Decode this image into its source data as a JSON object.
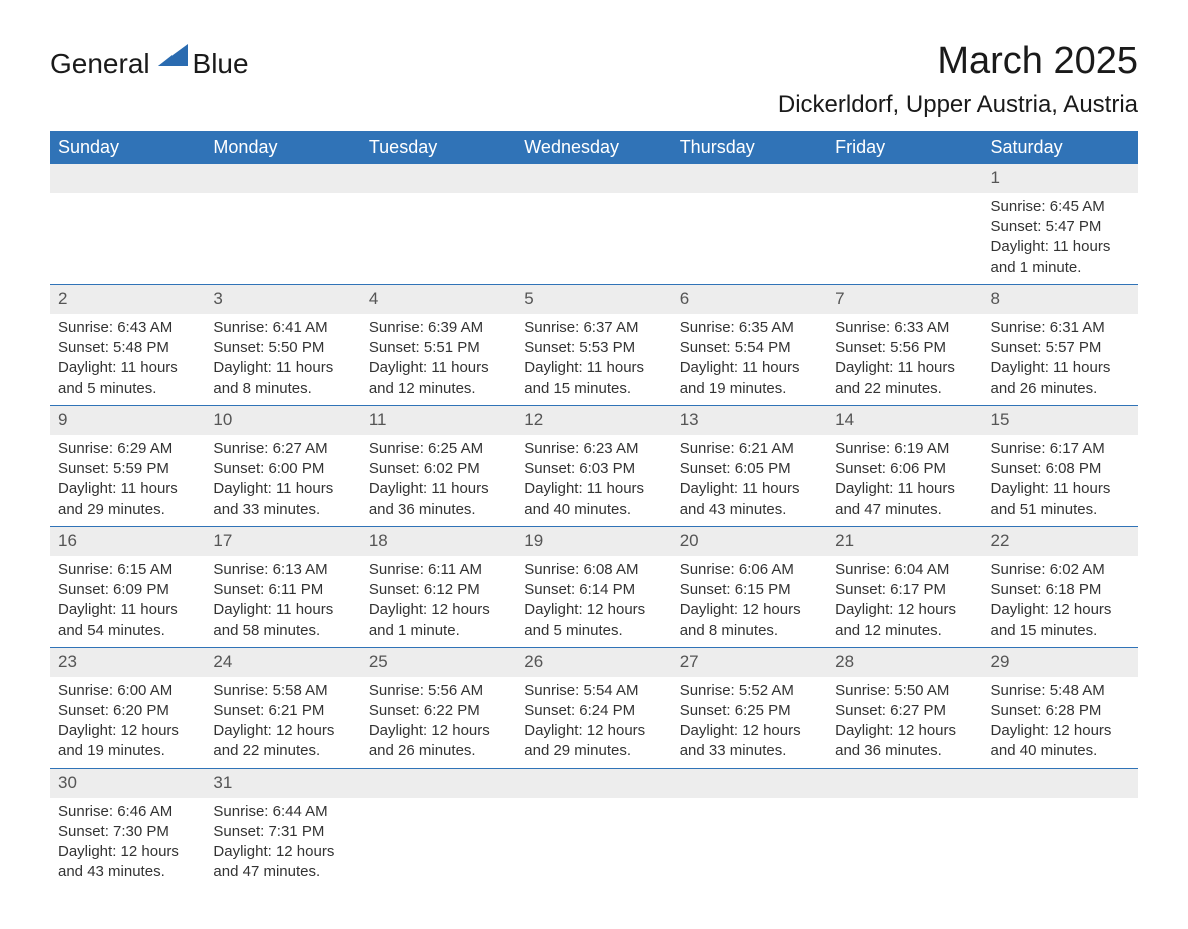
{
  "brand": {
    "name_part1": "General",
    "name_part2": "Blue",
    "icon_color": "#2a6bb0"
  },
  "title": "March 2025",
  "location": "Dickerldorf, Upper Austria, Austria",
  "colors": {
    "header_bg": "#3073b7",
    "header_text": "#ffffff",
    "daynum_bg": "#ededed",
    "daynum_text": "#555555",
    "border": "#3073b7",
    "body_text": "#333333"
  },
  "columns": [
    "Sunday",
    "Monday",
    "Tuesday",
    "Wednesday",
    "Thursday",
    "Friday",
    "Saturday"
  ],
  "weeks": [
    [
      {
        "day": "",
        "sunrise": "",
        "sunset": "",
        "daylight": ""
      },
      {
        "day": "",
        "sunrise": "",
        "sunset": "",
        "daylight": ""
      },
      {
        "day": "",
        "sunrise": "",
        "sunset": "",
        "daylight": ""
      },
      {
        "day": "",
        "sunrise": "",
        "sunset": "",
        "daylight": ""
      },
      {
        "day": "",
        "sunrise": "",
        "sunset": "",
        "daylight": ""
      },
      {
        "day": "",
        "sunrise": "",
        "sunset": "",
        "daylight": ""
      },
      {
        "day": "1",
        "sunrise": "Sunrise: 6:45 AM",
        "sunset": "Sunset: 5:47 PM",
        "daylight": "Daylight: 11 hours and 1 minute."
      }
    ],
    [
      {
        "day": "2",
        "sunrise": "Sunrise: 6:43 AM",
        "sunset": "Sunset: 5:48 PM",
        "daylight": "Daylight: 11 hours and 5 minutes."
      },
      {
        "day": "3",
        "sunrise": "Sunrise: 6:41 AM",
        "sunset": "Sunset: 5:50 PM",
        "daylight": "Daylight: 11 hours and 8 minutes."
      },
      {
        "day": "4",
        "sunrise": "Sunrise: 6:39 AM",
        "sunset": "Sunset: 5:51 PM",
        "daylight": "Daylight: 11 hours and 12 minutes."
      },
      {
        "day": "5",
        "sunrise": "Sunrise: 6:37 AM",
        "sunset": "Sunset: 5:53 PM",
        "daylight": "Daylight: 11 hours and 15 minutes."
      },
      {
        "day": "6",
        "sunrise": "Sunrise: 6:35 AM",
        "sunset": "Sunset: 5:54 PM",
        "daylight": "Daylight: 11 hours and 19 minutes."
      },
      {
        "day": "7",
        "sunrise": "Sunrise: 6:33 AM",
        "sunset": "Sunset: 5:56 PM",
        "daylight": "Daylight: 11 hours and 22 minutes."
      },
      {
        "day": "8",
        "sunrise": "Sunrise: 6:31 AM",
        "sunset": "Sunset: 5:57 PM",
        "daylight": "Daylight: 11 hours and 26 minutes."
      }
    ],
    [
      {
        "day": "9",
        "sunrise": "Sunrise: 6:29 AM",
        "sunset": "Sunset: 5:59 PM",
        "daylight": "Daylight: 11 hours and 29 minutes."
      },
      {
        "day": "10",
        "sunrise": "Sunrise: 6:27 AM",
        "sunset": "Sunset: 6:00 PM",
        "daylight": "Daylight: 11 hours and 33 minutes."
      },
      {
        "day": "11",
        "sunrise": "Sunrise: 6:25 AM",
        "sunset": "Sunset: 6:02 PM",
        "daylight": "Daylight: 11 hours and 36 minutes."
      },
      {
        "day": "12",
        "sunrise": "Sunrise: 6:23 AM",
        "sunset": "Sunset: 6:03 PM",
        "daylight": "Daylight: 11 hours and 40 minutes."
      },
      {
        "day": "13",
        "sunrise": "Sunrise: 6:21 AM",
        "sunset": "Sunset: 6:05 PM",
        "daylight": "Daylight: 11 hours and 43 minutes."
      },
      {
        "day": "14",
        "sunrise": "Sunrise: 6:19 AM",
        "sunset": "Sunset: 6:06 PM",
        "daylight": "Daylight: 11 hours and 47 minutes."
      },
      {
        "day": "15",
        "sunrise": "Sunrise: 6:17 AM",
        "sunset": "Sunset: 6:08 PM",
        "daylight": "Daylight: 11 hours and 51 minutes."
      }
    ],
    [
      {
        "day": "16",
        "sunrise": "Sunrise: 6:15 AM",
        "sunset": "Sunset: 6:09 PM",
        "daylight": "Daylight: 11 hours and 54 minutes."
      },
      {
        "day": "17",
        "sunrise": "Sunrise: 6:13 AM",
        "sunset": "Sunset: 6:11 PM",
        "daylight": "Daylight: 11 hours and 58 minutes."
      },
      {
        "day": "18",
        "sunrise": "Sunrise: 6:11 AM",
        "sunset": "Sunset: 6:12 PM",
        "daylight": "Daylight: 12 hours and 1 minute."
      },
      {
        "day": "19",
        "sunrise": "Sunrise: 6:08 AM",
        "sunset": "Sunset: 6:14 PM",
        "daylight": "Daylight: 12 hours and 5 minutes."
      },
      {
        "day": "20",
        "sunrise": "Sunrise: 6:06 AM",
        "sunset": "Sunset: 6:15 PM",
        "daylight": "Daylight: 12 hours and 8 minutes."
      },
      {
        "day": "21",
        "sunrise": "Sunrise: 6:04 AM",
        "sunset": "Sunset: 6:17 PM",
        "daylight": "Daylight: 12 hours and 12 minutes."
      },
      {
        "day": "22",
        "sunrise": "Sunrise: 6:02 AM",
        "sunset": "Sunset: 6:18 PM",
        "daylight": "Daylight: 12 hours and 15 minutes."
      }
    ],
    [
      {
        "day": "23",
        "sunrise": "Sunrise: 6:00 AM",
        "sunset": "Sunset: 6:20 PM",
        "daylight": "Daylight: 12 hours and 19 minutes."
      },
      {
        "day": "24",
        "sunrise": "Sunrise: 5:58 AM",
        "sunset": "Sunset: 6:21 PM",
        "daylight": "Daylight: 12 hours and 22 minutes."
      },
      {
        "day": "25",
        "sunrise": "Sunrise: 5:56 AM",
        "sunset": "Sunset: 6:22 PM",
        "daylight": "Daylight: 12 hours and 26 minutes."
      },
      {
        "day": "26",
        "sunrise": "Sunrise: 5:54 AM",
        "sunset": "Sunset: 6:24 PM",
        "daylight": "Daylight: 12 hours and 29 minutes."
      },
      {
        "day": "27",
        "sunrise": "Sunrise: 5:52 AM",
        "sunset": "Sunset: 6:25 PM",
        "daylight": "Daylight: 12 hours and 33 minutes."
      },
      {
        "day": "28",
        "sunrise": "Sunrise: 5:50 AM",
        "sunset": "Sunset: 6:27 PM",
        "daylight": "Daylight: 12 hours and 36 minutes."
      },
      {
        "day": "29",
        "sunrise": "Sunrise: 5:48 AM",
        "sunset": "Sunset: 6:28 PM",
        "daylight": "Daylight: 12 hours and 40 minutes."
      }
    ],
    [
      {
        "day": "30",
        "sunrise": "Sunrise: 6:46 AM",
        "sunset": "Sunset: 7:30 PM",
        "daylight": "Daylight: 12 hours and 43 minutes."
      },
      {
        "day": "31",
        "sunrise": "Sunrise: 6:44 AM",
        "sunset": "Sunset: 7:31 PM",
        "daylight": "Daylight: 12 hours and 47 minutes."
      },
      {
        "day": "",
        "sunrise": "",
        "sunset": "",
        "daylight": ""
      },
      {
        "day": "",
        "sunrise": "",
        "sunset": "",
        "daylight": ""
      },
      {
        "day": "",
        "sunrise": "",
        "sunset": "",
        "daylight": ""
      },
      {
        "day": "",
        "sunrise": "",
        "sunset": "",
        "daylight": ""
      },
      {
        "day": "",
        "sunrise": "",
        "sunset": "",
        "daylight": ""
      }
    ]
  ]
}
